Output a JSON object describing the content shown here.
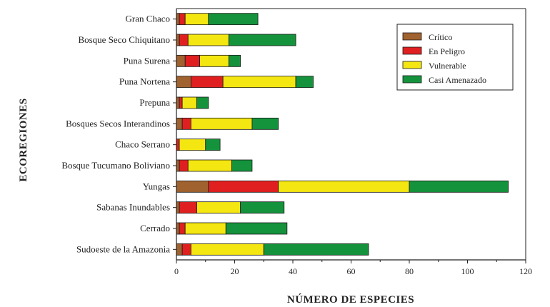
{
  "chart_data": {
    "type": "bar",
    "orientation": "horizontal",
    "stacked": true,
    "title": "",
    "xlabel": "NÚMERO DE ESPECIES",
    "ylabel": "ECOREGIONES",
    "xlim": [
      0,
      120
    ],
    "xticks": [
      "0",
      "20",
      "40",
      "60",
      "80",
      "100",
      "120"
    ],
    "grid": false,
    "legend_position": "top-right",
    "categories": [
      "Gran Chaco",
      "Bosque Seco Chiquitano",
      "Puna Surena",
      "Puna Nortena",
      "Prepuna",
      "Bosques Secos Interandinos",
      "Chaco Serrano",
      "Bosque Tucumano Boliviano",
      "Yungas",
      "Sabanas Inundables",
      "Cerrado",
      "Sudoeste de la Amazonia"
    ],
    "series": [
      {
        "name": "Crítico",
        "color": "#a0622e",
        "values": [
          1,
          1,
          3,
          5,
          1,
          2,
          0,
          1,
          11,
          1,
          1,
          2
        ]
      },
      {
        "name": "En Peligro",
        "color": "#e02020",
        "values": [
          2,
          3,
          5,
          11,
          1,
          3,
          1,
          3,
          24,
          6,
          2,
          3
        ]
      },
      {
        "name": "Vulnerable",
        "color": "#f4e611",
        "values": [
          8,
          14,
          10,
          25,
          5,
          21,
          9,
          15,
          45,
          15,
          14,
          25
        ]
      },
      {
        "name": "Casi Amenazado",
        "color": "#14933c",
        "values": [
          17,
          23,
          4,
          6,
          4,
          9,
          5,
          7,
          34,
          15,
          21,
          36
        ]
      }
    ]
  }
}
